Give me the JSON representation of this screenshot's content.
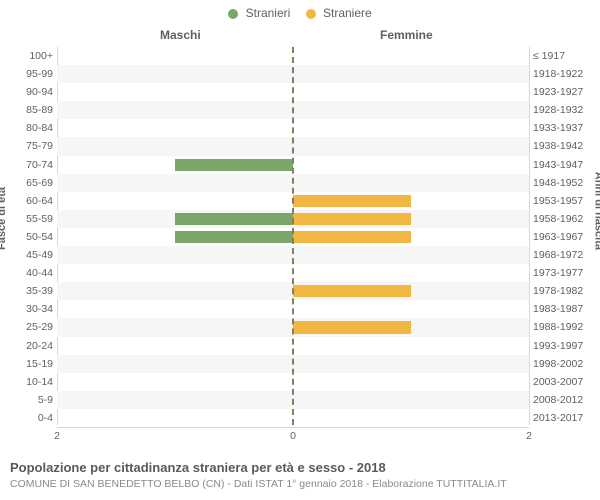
{
  "legend": {
    "male": {
      "label": "Stranieri",
      "color": "#7aa768"
    },
    "female": {
      "label": "Straniere",
      "color": "#f2b742"
    }
  },
  "side_headers": {
    "left": "Maschi",
    "right": "Femmine"
  },
  "axis_titles": {
    "left": "Fasce di età",
    "right": "Anni di nascita"
  },
  "chart": {
    "type": "population-pyramid",
    "x_max": 2,
    "x_ticks_left": [
      2,
      0
    ],
    "x_ticks_right": [
      0,
      2
    ],
    "colors": {
      "male_bar": "#7aa768",
      "female_bar": "#f2b742",
      "grid": "#d8d8d8",
      "center_line": "#808060",
      "row_alt_bg": "#f6f6f6",
      "background": "#ffffff",
      "tick_text": "#606060"
    },
    "rows": [
      {
        "age": "100+",
        "birth": "≤ 1917",
        "male": 0,
        "female": 0
      },
      {
        "age": "95-99",
        "birth": "1918-1922",
        "male": 0,
        "female": 0
      },
      {
        "age": "90-94",
        "birth": "1923-1927",
        "male": 0,
        "female": 0
      },
      {
        "age": "85-89",
        "birth": "1928-1932",
        "male": 0,
        "female": 0
      },
      {
        "age": "80-84",
        "birth": "1933-1937",
        "male": 0,
        "female": 0
      },
      {
        "age": "75-79",
        "birth": "1938-1942",
        "male": 0,
        "female": 0
      },
      {
        "age": "70-74",
        "birth": "1943-1947",
        "male": 1,
        "female": 0
      },
      {
        "age": "65-69",
        "birth": "1948-1952",
        "male": 0,
        "female": 0
      },
      {
        "age": "60-64",
        "birth": "1953-1957",
        "male": 0,
        "female": 1
      },
      {
        "age": "55-59",
        "birth": "1958-1962",
        "male": 1,
        "female": 1
      },
      {
        "age": "50-54",
        "birth": "1963-1967",
        "male": 1,
        "female": 1
      },
      {
        "age": "45-49",
        "birth": "1968-1972",
        "male": 0,
        "female": 0
      },
      {
        "age": "40-44",
        "birth": "1973-1977",
        "male": 0,
        "female": 0
      },
      {
        "age": "35-39",
        "birth": "1978-1982",
        "male": 0,
        "female": 1
      },
      {
        "age": "30-34",
        "birth": "1983-1987",
        "male": 0,
        "female": 0
      },
      {
        "age": "25-29",
        "birth": "1988-1992",
        "male": 0,
        "female": 1
      },
      {
        "age": "20-24",
        "birth": "1993-1997",
        "male": 0,
        "female": 0
      },
      {
        "age": "15-19",
        "birth": "1998-2002",
        "male": 0,
        "female": 0
      },
      {
        "age": "10-14",
        "birth": "2003-2007",
        "male": 0,
        "female": 0
      },
      {
        "age": "5-9",
        "birth": "2008-2012",
        "male": 0,
        "female": 0
      },
      {
        "age": "0-4",
        "birth": "2013-2017",
        "male": 0,
        "female": 0
      }
    ]
  },
  "footer": {
    "title": "Popolazione per cittadinanza straniera per età e sesso - 2018",
    "subtitle": "COMUNE DI SAN BENEDETTO BELBO (CN) - Dati ISTAT 1° gennaio 2018 - Elaborazione TUTTITALIA.IT"
  }
}
